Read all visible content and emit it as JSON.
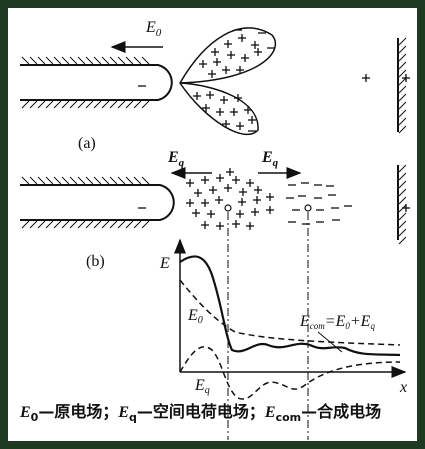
{
  "panel_a": {
    "field_label": {
      "main": "E",
      "sub": "0"
    },
    "caption": "(a)"
  },
  "panel_b": {
    "field_left": {
      "main": "E",
      "sub": "q"
    },
    "field_right": {
      "main": "E",
      "sub": "q"
    },
    "caption": "(b)"
  },
  "graph": {
    "y_axis": "E",
    "x_axis": "x",
    "curve_e0": {
      "main": "E",
      "sub": "0"
    },
    "curve_eq": {
      "main": "E",
      "sub": "q"
    },
    "curve_ecom": {
      "main": "E",
      "sub": "com",
      "equals": "=",
      "term1": "E",
      "term1_sub": "0",
      "plus": "+",
      "term2": "E",
      "term2_sub": "q"
    }
  },
  "legend": [
    {
      "main": "E",
      "sub": "0",
      "text": "—原电场；"
    },
    {
      "main": "E",
      "sub": "q",
      "text": "—空间电荷电场；"
    },
    {
      "main": "E",
      "sub": "com",
      "text": "—合成电场"
    }
  ]
}
